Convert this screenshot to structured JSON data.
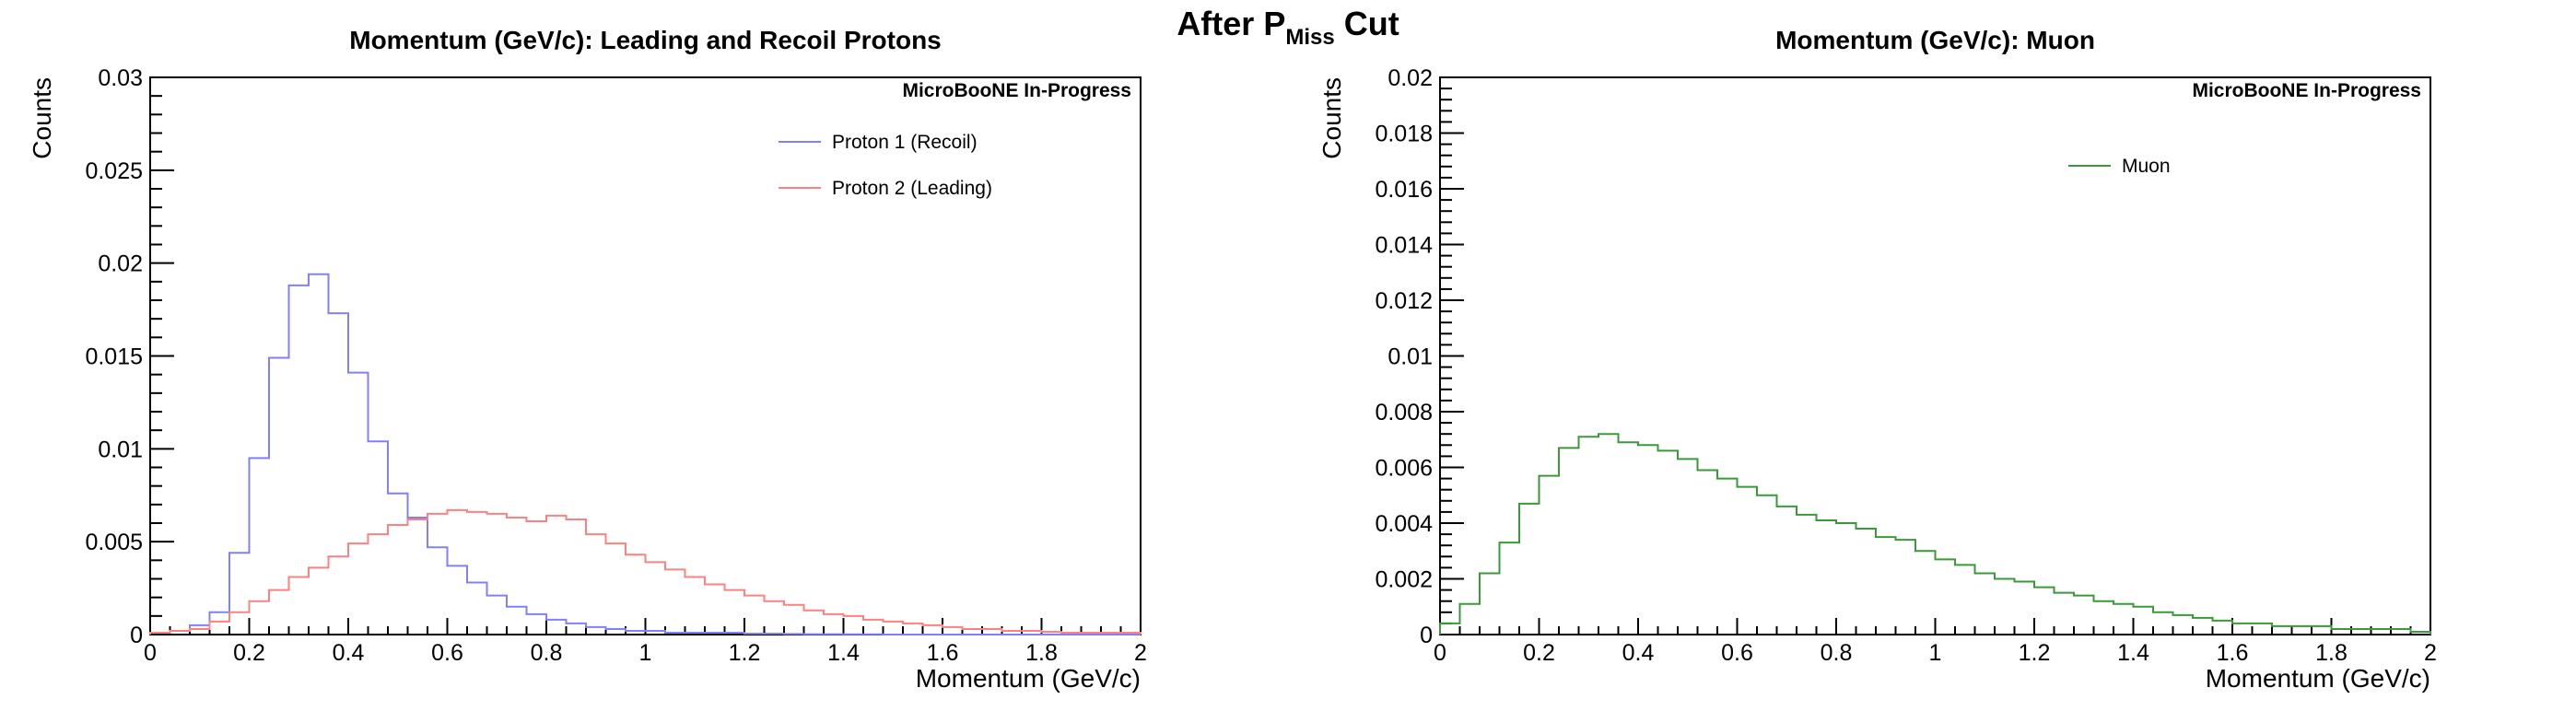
{
  "main_title": {
    "prefix": "After P",
    "subscript": "Miss",
    "suffix": " Cut"
  },
  "chart_data": [
    {
      "type": "histogram",
      "title": "Momentum (GeV/c): Leading and Recoil Protons",
      "xlabel": "Momentum (GeV/c)",
      "ylabel": "Counts",
      "watermark": "MicroBooNE In-Progress",
      "xlim": [
        0,
        2
      ],
      "ylim": [
        0,
        0.03
      ],
      "x_ticks": [
        0,
        0.2,
        0.4,
        0.6,
        0.8,
        1,
        1.2,
        1.4,
        1.6,
        1.8,
        2
      ],
      "x_tick_labels": [
        "0",
        "0.2",
        "0.4",
        "0.6",
        "0.8",
        "1",
        "1.2",
        "1.4",
        "1.6",
        "1.8",
        "2"
      ],
      "y_ticks": [
        0,
        0.005,
        0.01,
        0.015,
        0.02,
        0.025,
        0.03
      ],
      "y_tick_labels": [
        "0",
        "0.005",
        "0.01",
        "0.015",
        "0.02",
        "0.025",
        "0.03"
      ],
      "grid": false,
      "legend_position": "top-right",
      "bin_width": 0.04,
      "series": [
        {
          "name": "Proton 1 (Recoil)",
          "color": "#8080ff",
          "values": [
            0.0001,
            0.0002,
            0.0005,
            0.0012,
            0.0044,
            0.0095,
            0.0149,
            0.0188,
            0.0194,
            0.0173,
            0.0141,
            0.0104,
            0.0076,
            0.0063,
            0.0047,
            0.0037,
            0.0028,
            0.0021,
            0.0015,
            0.0011,
            0.0008,
            0.0006,
            0.0004,
            0.0003,
            0.0002,
            0.0002,
            0.0001,
            0.0001,
            0.0001,
            0.0001,
            5e-05,
            5e-05,
            3e-05,
            2e-05,
            2e-05,
            1e-05,
            1e-05,
            0.0,
            0.0,
            0.0,
            0.0,
            0.0,
            0.0,
            0.0,
            0.0,
            0.0,
            0.0,
            0.0,
            0.0,
            0.0
          ]
        },
        {
          "name": "Proton 2 (Leading)",
          "color": "#ff8080",
          "values": [
            0.0001,
            0.0002,
            0.0003,
            0.0007,
            0.0012,
            0.0018,
            0.0024,
            0.0031,
            0.0036,
            0.0042,
            0.0049,
            0.0054,
            0.0059,
            0.0062,
            0.0065,
            0.0067,
            0.0066,
            0.0065,
            0.0063,
            0.0061,
            0.0064,
            0.0062,
            0.0054,
            0.0049,
            0.0043,
            0.0039,
            0.0035,
            0.0031,
            0.0027,
            0.0024,
            0.0021,
            0.0018,
            0.0016,
            0.0013,
            0.0011,
            0.001,
            0.0008,
            0.0007,
            0.0006,
            0.0005,
            0.0004,
            0.0003,
            0.0003,
            0.0002,
            0.0002,
            0.00015,
            0.0001,
            0.0001,
            0.0001,
            0.0001
          ]
        }
      ]
    },
    {
      "type": "histogram",
      "title": "Momentum (GeV/c): Muon",
      "xlabel": "Momentum (GeV/c)",
      "ylabel": "Counts",
      "watermark": "MicroBooNE In-Progress",
      "xlim": [
        0,
        2
      ],
      "ylim": [
        0,
        0.02
      ],
      "x_ticks": [
        0,
        0.2,
        0.4,
        0.6,
        0.8,
        1,
        1.2,
        1.4,
        1.6,
        1.8,
        2
      ],
      "x_tick_labels": [
        "0",
        "0.2",
        "0.4",
        "0.6",
        "0.8",
        "1",
        "1.2",
        "1.4",
        "1.6",
        "1.8",
        "2"
      ],
      "y_ticks": [
        0,
        0.002,
        0.004,
        0.006,
        0.008,
        0.01,
        0.012,
        0.014,
        0.016,
        0.018,
        0.02
      ],
      "y_tick_labels": [
        "0",
        "0.002",
        "0.004",
        "0.006",
        "0.008",
        "0.01",
        "0.012",
        "0.014",
        "0.016",
        "0.018",
        "0.02"
      ],
      "grid": false,
      "legend_position": "top-right",
      "bin_width": 0.04,
      "series": [
        {
          "name": "Muon",
          "color": "#3a9a3a",
          "values": [
            0.0004,
            0.0011,
            0.0022,
            0.0033,
            0.0047,
            0.0057,
            0.0067,
            0.0071,
            0.0072,
            0.0069,
            0.0068,
            0.0066,
            0.0063,
            0.0059,
            0.0056,
            0.0053,
            0.005,
            0.0046,
            0.0043,
            0.0041,
            0.004,
            0.0038,
            0.0035,
            0.0034,
            0.003,
            0.0027,
            0.0025,
            0.0022,
            0.002,
            0.0019,
            0.0017,
            0.0015,
            0.0014,
            0.0012,
            0.0011,
            0.001,
            0.0008,
            0.0007,
            0.0006,
            0.0005,
            0.0004,
            0.0004,
            0.0003,
            0.0003,
            0.0003,
            0.0002,
            0.0002,
            0.0002,
            0.0002,
            0.0001
          ]
        }
      ]
    }
  ]
}
